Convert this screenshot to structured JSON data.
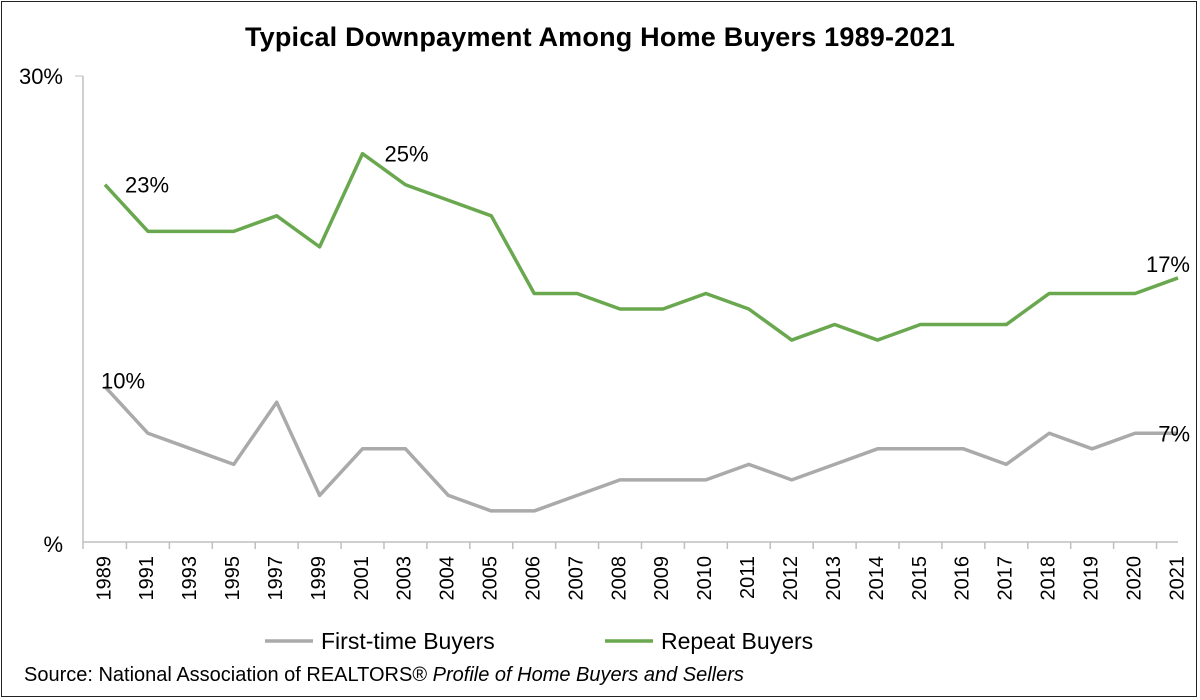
{
  "chart_data": {
    "type": "line",
    "title": "Typical Downpayment Among Home Buyers 1989-2021",
    "x": [
      "1989",
      "1991",
      "1993",
      "1995",
      "1997",
      "1999",
      "2001",
      "2003",
      "2004",
      "2005",
      "2006",
      "2007",
      "2008",
      "2009",
      "2010",
      "2011",
      "2012",
      "2013",
      "2014",
      "2015",
      "2016",
      "2017",
      "2018",
      "2019",
      "2020",
      "2021"
    ],
    "y_tick_labels": [
      "30%",
      "%"
    ],
    "ylim": [
      0,
      30
    ],
    "grid": false,
    "legend_position": "bottom",
    "series": [
      {
        "name": "First-time Buyers",
        "color": "#aaaaaa",
        "values": [
          10,
          7,
          6,
          5,
          9,
          3,
          6,
          6,
          3,
          2,
          2,
          3,
          4,
          4,
          4,
          5,
          4,
          5,
          6,
          6,
          6,
          5,
          7,
          6,
          7,
          7
        ]
      },
      {
        "name": "Repeat Buyers",
        "color": "#6aa84f",
        "values": [
          23,
          20,
          20,
          20,
          21,
          19,
          25,
          23,
          22,
          21,
          16,
          16,
          15,
          15,
          16,
          15,
          13,
          14,
          13,
          14,
          14,
          14,
          16,
          16,
          16,
          17
        ]
      }
    ],
    "annotations": [
      {
        "series": 1,
        "index": 0,
        "text": "23%"
      },
      {
        "series": 1,
        "index": 6,
        "text": "25%"
      },
      {
        "series": 1,
        "index": 25,
        "text": "17%"
      },
      {
        "series": 0,
        "index": 0,
        "text": "10%"
      },
      {
        "series": 0,
        "index": 25,
        "text": "7%"
      }
    ]
  },
  "source": {
    "prefix": "Source: National Association of REALTORS®",
    "publication": "Profile of Home Buyers and Sellers"
  }
}
